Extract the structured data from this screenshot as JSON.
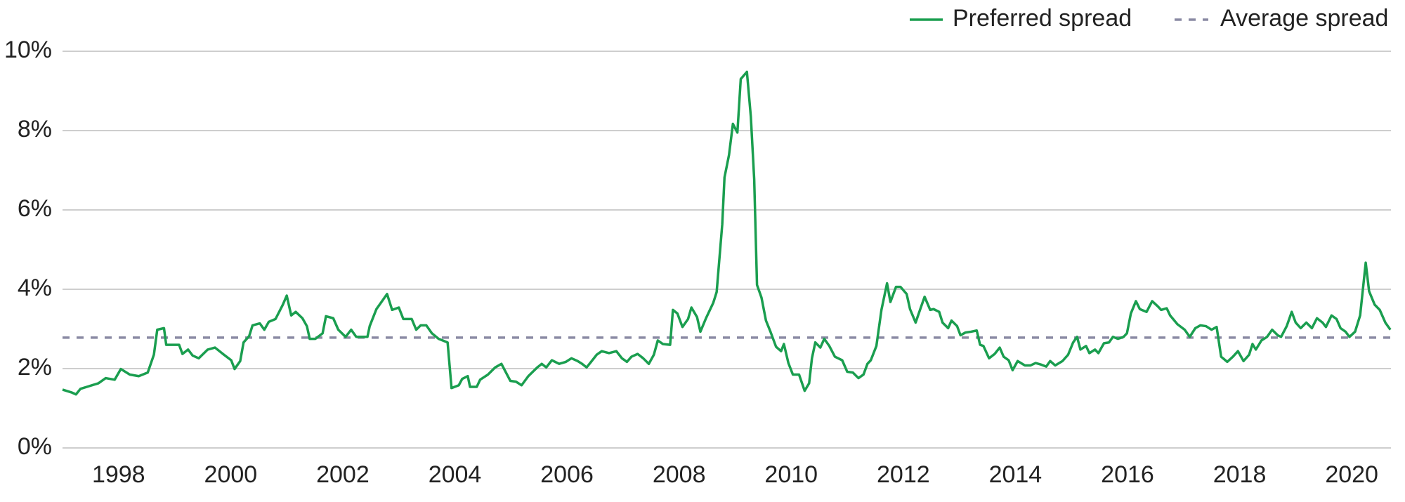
{
  "chart_data": {
    "type": "line",
    "x": [
      1997.0,
      1997.16,
      1997.24,
      1997.32,
      1997.48,
      1997.64,
      1997.77,
      1997.93,
      1998.04,
      1998.2,
      1998.36,
      1998.52,
      1998.63,
      1998.69,
      1998.81,
      1998.85,
      1999.08,
      1999.14,
      1999.24,
      1999.32,
      1999.43,
      1999.59,
      1999.72,
      1999.88,
      2000.01,
      2000.07,
      2000.17,
      2000.23,
      2000.33,
      2000.39,
      2000.52,
      2000.6,
      2000.68,
      2000.8,
      2000.93,
      2001.0,
      2001.08,
      2001.16,
      2001.28,
      2001.36,
      2001.41,
      2001.51,
      2001.64,
      2001.7,
      2001.83,
      2001.92,
      2002.05,
      2002.15,
      2002.24,
      2002.44,
      2002.48,
      2002.6,
      2002.69,
      2002.79,
      2002.88,
      2003.0,
      2003.08,
      2003.23,
      2003.31,
      2003.39,
      2003.49,
      2003.59,
      2003.71,
      2003.87,
      2003.94,
      2004.07,
      2004.13,
      2004.23,
      2004.27,
      2004.39,
      2004.45,
      2004.59,
      2004.72,
      2004.83,
      2004.99,
      2005.09,
      2005.19,
      2005.31,
      2005.47,
      2005.55,
      2005.63,
      2005.73,
      2005.86,
      2005.98,
      2006.08,
      2006.19,
      2006.27,
      2006.35,
      2006.43,
      2006.53,
      2006.62,
      2006.75,
      2006.88,
      2006.98,
      2007.07,
      2007.15,
      2007.26,
      2007.36,
      2007.46,
      2007.55,
      2007.62,
      2007.71,
      2007.84,
      2007.89,
      2007.97,
      2008.06,
      2008.16,
      2008.22,
      2008.32,
      2008.38,
      2008.48,
      2008.61,
      2008.67,
      2008.77,
      2008.81,
      2008.89,
      2008.96,
      2009.04,
      2009.1,
      2009.21,
      2009.28,
      2009.34,
      2009.39,
      2009.47,
      2009.55,
      2009.63,
      2009.73,
      2009.82,
      2009.87,
      2009.95,
      2010.03,
      2010.14,
      2010.24,
      2010.32,
      2010.37,
      2010.43,
      2010.52,
      2010.59,
      2010.68,
      2010.78,
      2010.91,
      2011.0,
      2011.1,
      2011.2,
      2011.29,
      2011.36,
      2011.42,
      2011.52,
      2011.61,
      2011.71,
      2011.77,
      2011.87,
      2011.95,
      2012.06,
      2012.12,
      2012.22,
      2012.32,
      2012.38,
      2012.48,
      2012.54,
      2012.64,
      2012.7,
      2012.8,
      2012.86,
      2012.96,
      2013.02,
      2013.11,
      2013.21,
      2013.31,
      2013.37,
      2013.43,
      2013.53,
      2013.63,
      2013.72,
      2013.79,
      2013.88,
      2013.95,
      2014.04,
      2014.17,
      2014.27,
      2014.36,
      2014.46,
      2014.55,
      2014.62,
      2014.71,
      2014.84,
      2014.94,
      2015.03,
      2015.1,
      2015.16,
      2015.26,
      2015.32,
      2015.42,
      2015.48,
      2015.58,
      2015.67,
      2015.74,
      2015.83,
      2015.93,
      2015.99,
      2016.06,
      2016.15,
      2016.22,
      2016.34,
      2016.44,
      2016.54,
      2016.6,
      2016.7,
      2016.76,
      2016.89,
      2017.02,
      2017.11,
      2017.21,
      2017.3,
      2017.4,
      2017.5,
      2017.59,
      2017.67,
      2017.78,
      2017.88,
      2017.97,
      2018.07,
      2018.17,
      2018.23,
      2018.29,
      2018.39,
      2018.49,
      2018.58,
      2018.68,
      2018.74,
      2018.84,
      2018.93,
      2019.0,
      2019.09,
      2019.19,
      2019.29,
      2019.38,
      2019.48,
      2019.54,
      2019.64,
      2019.73,
      2019.8,
      2019.89,
      2019.96,
      2020.06,
      2020.15,
      2020.25,
      2020.31,
      2020.41,
      2020.5,
      2020.6,
      2020.69
    ],
    "series": [
      {
        "name": "Preferred spread",
        "color": "#1a9e4f",
        "values": [
          1.47,
          1.4,
          1.35,
          1.49,
          1.56,
          1.63,
          1.76,
          1.72,
          1.99,
          1.85,
          1.81,
          1.9,
          2.35,
          2.98,
          3.02,
          2.6,
          2.6,
          2.37,
          2.48,
          2.33,
          2.26,
          2.48,
          2.53,
          2.35,
          2.21,
          1.99,
          2.19,
          2.66,
          2.82,
          3.09,
          3.14,
          2.98,
          3.18,
          3.25,
          3.61,
          3.84,
          3.34,
          3.43,
          3.27,
          3.07,
          2.75,
          2.75,
          2.89,
          3.32,
          3.27,
          2.98,
          2.8,
          2.98,
          2.8,
          2.8,
          3.07,
          3.5,
          3.68,
          3.88,
          3.48,
          3.54,
          3.25,
          3.25,
          2.98,
          3.09,
          3.09,
          2.89,
          2.75,
          2.66,
          1.51,
          1.58,
          1.74,
          1.81,
          1.54,
          1.54,
          1.72,
          1.85,
          2.03,
          2.12,
          1.69,
          1.67,
          1.58,
          1.81,
          2.03,
          2.12,
          2.03,
          2.21,
          2.12,
          2.17,
          2.26,
          2.19,
          2.12,
          2.03,
          2.17,
          2.35,
          2.44,
          2.39,
          2.44,
          2.26,
          2.17,
          2.3,
          2.37,
          2.26,
          2.12,
          2.35,
          2.71,
          2.62,
          2.6,
          3.48,
          3.39,
          3.05,
          3.25,
          3.54,
          3.3,
          2.93,
          3.27,
          3.66,
          3.93,
          5.64,
          6.82,
          7.38,
          8.17,
          7.95,
          9.3,
          9.48,
          8.35,
          6.77,
          4.11,
          3.79,
          3.21,
          2.93,
          2.55,
          2.44,
          2.62,
          2.14,
          1.85,
          1.85,
          1.44,
          1.63,
          2.26,
          2.66,
          2.53,
          2.75,
          2.57,
          2.3,
          2.21,
          1.92,
          1.9,
          1.76,
          1.85,
          2.12,
          2.21,
          2.57,
          3.48,
          4.15,
          3.68,
          4.06,
          4.06,
          3.88,
          3.5,
          3.16,
          3.57,
          3.81,
          3.48,
          3.5,
          3.43,
          3.16,
          3.02,
          3.21,
          3.07,
          2.84,
          2.91,
          2.93,
          2.96,
          2.6,
          2.57,
          2.26,
          2.37,
          2.53,
          2.3,
          2.21,
          1.96,
          2.19,
          2.08,
          2.08,
          2.14,
          2.1,
          2.05,
          2.19,
          2.08,
          2.19,
          2.35,
          2.66,
          2.8,
          2.48,
          2.57,
          2.39,
          2.48,
          2.39,
          2.64,
          2.66,
          2.8,
          2.75,
          2.8,
          2.89,
          3.39,
          3.7,
          3.5,
          3.43,
          3.7,
          3.57,
          3.48,
          3.52,
          3.34,
          3.12,
          2.98,
          2.8,
          3.02,
          3.09,
          3.07,
          2.98,
          3.05,
          2.3,
          2.17,
          2.3,
          2.44,
          2.19,
          2.35,
          2.62,
          2.48,
          2.71,
          2.8,
          2.98,
          2.84,
          2.8,
          3.07,
          3.43,
          3.16,
          3.02,
          3.16,
          3.02,
          3.27,
          3.16,
          3.05,
          3.34,
          3.25,
          3.02,
          2.93,
          2.8,
          2.93,
          3.34,
          4.67,
          3.95,
          3.61,
          3.48,
          3.16,
          2.98
        ]
      }
    ],
    "reference_line": {
      "name": "Average spread",
      "value": 2.78,
      "color": "#8a8aa3",
      "dashed": true
    },
    "xlim": [
      1997,
      2020.7
    ],
    "xticks": [
      1998,
      2000,
      2002,
      2004,
      2006,
      2008,
      2010,
      2012,
      2014,
      2016,
      2018,
      2020
    ],
    "ylim": [
      0,
      10
    ],
    "yticks": [
      {
        "value": 0,
        "label": "0%"
      },
      {
        "value": 2,
        "label": "2%"
      },
      {
        "value": 4,
        "label": "4%"
      },
      {
        "value": 6,
        "label": "6%"
      },
      {
        "value": 8,
        "label": "8%"
      },
      {
        "value": 10,
        "label": "10%"
      }
    ],
    "grid": true,
    "legend": "top-right"
  }
}
